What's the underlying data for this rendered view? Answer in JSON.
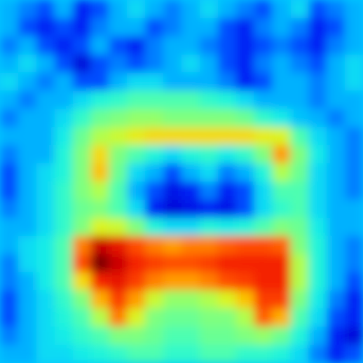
{
  "chart_data": {
    "type": "heatmap",
    "tick_labels": false,
    "color_range": [
      0,
      1
    ],
    "cells": [
      [
        0.3,
        0.25,
        0.2,
        0.3,
        0.15,
        0.2,
        0.3,
        0.35,
        0.3,
        0.25,
        0.3,
        0.35,
        0.3,
        0.25,
        0.2,
        0.3,
        0.35,
        0.2,
        0.25,
        0.3
      ],
      [
        0.3,
        0.2,
        0.15,
        0.2,
        0.15,
        0.25,
        0.3,
        0.3,
        0.2,
        0.25,
        0.3,
        0.3,
        0.2,
        0.15,
        0.25,
        0.3,
        0.25,
        0.15,
        0.2,
        0.3
      ],
      [
        0.25,
        0.3,
        0.2,
        0.15,
        0.2,
        0.3,
        0.2,
        0.15,
        0.25,
        0.3,
        0.3,
        0.25,
        0.2,
        0.15,
        0.2,
        0.25,
        0.2,
        0.15,
        0.25,
        0.3
      ],
      [
        0.3,
        0.35,
        0.3,
        0.2,
        0.1,
        0.2,
        0.25,
        0.2,
        0.25,
        0.3,
        0.35,
        0.3,
        0.2,
        0.15,
        0.25,
        0.3,
        0.25,
        0.2,
        0.3,
        0.35
      ],
      [
        0.35,
        0.3,
        0.25,
        0.3,
        0.2,
        0.2,
        0.3,
        0.35,
        0.35,
        0.3,
        0.3,
        0.3,
        0.25,
        0.15,
        0.2,
        0.3,
        0.3,
        0.25,
        0.3,
        0.35
      ],
      [
        0.3,
        0.25,
        0.3,
        0.3,
        0.35,
        0.4,
        0.42,
        0.45,
        0.45,
        0.45,
        0.45,
        0.42,
        0.4,
        0.35,
        0.3,
        0.3,
        0.3,
        0.25,
        0.3,
        0.3
      ],
      [
        0.25,
        0.3,
        0.3,
        0.35,
        0.42,
        0.48,
        0.5,
        0.52,
        0.52,
        0.5,
        0.5,
        0.5,
        0.5,
        0.48,
        0.42,
        0.38,
        0.32,
        0.3,
        0.25,
        0.3
      ],
      [
        0.3,
        0.3,
        0.3,
        0.38,
        0.48,
        0.55,
        0.58,
        0.62,
        0.65,
        0.65,
        0.65,
        0.65,
        0.65,
        0.65,
        0.62,
        0.6,
        0.45,
        0.35,
        0.3,
        0.25
      ],
      [
        0.25,
        0.3,
        0.3,
        0.4,
        0.5,
        0.65,
        0.5,
        0.45,
        0.4,
        0.35,
        0.4,
        0.42,
        0.38,
        0.42,
        0.5,
        0.72,
        0.5,
        0.38,
        0.3,
        0.25
      ],
      [
        0.2,
        0.3,
        0.35,
        0.4,
        0.5,
        0.68,
        0.48,
        0.35,
        0.3,
        0.2,
        0.3,
        0.35,
        0.25,
        0.3,
        0.4,
        0.55,
        0.48,
        0.35,
        0.3,
        0.25
      ],
      [
        0.2,
        0.3,
        0.35,
        0.42,
        0.5,
        0.55,
        0.45,
        0.3,
        0.2,
        0.12,
        0.15,
        0.25,
        0.15,
        0.2,
        0.35,
        0.45,
        0.45,
        0.35,
        0.3,
        0.25
      ],
      [
        0.25,
        0.3,
        0.35,
        0.42,
        0.48,
        0.5,
        0.45,
        0.35,
        0.15,
        0.1,
        0.12,
        0.15,
        0.12,
        0.2,
        0.35,
        0.42,
        0.45,
        0.35,
        0.3,
        0.3
      ],
      [
        0.3,
        0.3,
        0.35,
        0.42,
        0.5,
        0.6,
        0.58,
        0.5,
        0.4,
        0.35,
        0.35,
        0.4,
        0.38,
        0.4,
        0.45,
        0.5,
        0.48,
        0.38,
        0.3,
        0.3
      ],
      [
        0.3,
        0.35,
        0.38,
        0.45,
        0.75,
        0.92,
        0.88,
        0.8,
        0.75,
        0.72,
        0.75,
        0.75,
        0.78,
        0.8,
        0.8,
        0.78,
        0.5,
        0.4,
        0.3,
        0.25
      ],
      [
        0.25,
        0.35,
        0.38,
        0.45,
        0.8,
        1.0,
        0.92,
        0.85,
        0.82,
        0.8,
        0.8,
        0.82,
        0.85,
        0.85,
        0.85,
        0.85,
        0.55,
        0.4,
        0.3,
        0.25
      ],
      [
        0.25,
        0.3,
        0.38,
        0.45,
        0.65,
        0.85,
        0.88,
        0.82,
        0.75,
        0.72,
        0.72,
        0.75,
        0.8,
        0.82,
        0.85,
        0.85,
        0.55,
        0.4,
        0.3,
        0.2
      ],
      [
        0.2,
        0.3,
        0.35,
        0.42,
        0.5,
        0.7,
        0.82,
        0.72,
        0.58,
        0.52,
        0.52,
        0.55,
        0.6,
        0.68,
        0.82,
        0.82,
        0.5,
        0.38,
        0.25,
        0.15
      ],
      [
        0.2,
        0.3,
        0.35,
        0.4,
        0.45,
        0.55,
        0.75,
        0.6,
        0.5,
        0.48,
        0.48,
        0.5,
        0.5,
        0.55,
        0.78,
        0.7,
        0.45,
        0.35,
        0.2,
        0.15
      ],
      [
        0.25,
        0.3,
        0.35,
        0.38,
        0.42,
        0.45,
        0.5,
        0.5,
        0.48,
        0.45,
        0.45,
        0.48,
        0.48,
        0.5,
        0.52,
        0.48,
        0.4,
        0.3,
        0.15,
        0.1
      ],
      [
        0.3,
        0.3,
        0.35,
        0.35,
        0.38,
        0.4,
        0.42,
        0.45,
        0.45,
        0.42,
        0.42,
        0.45,
        0.45,
        0.42,
        0.42,
        0.4,
        0.35,
        0.25,
        0.15,
        0.2
      ]
    ]
  }
}
